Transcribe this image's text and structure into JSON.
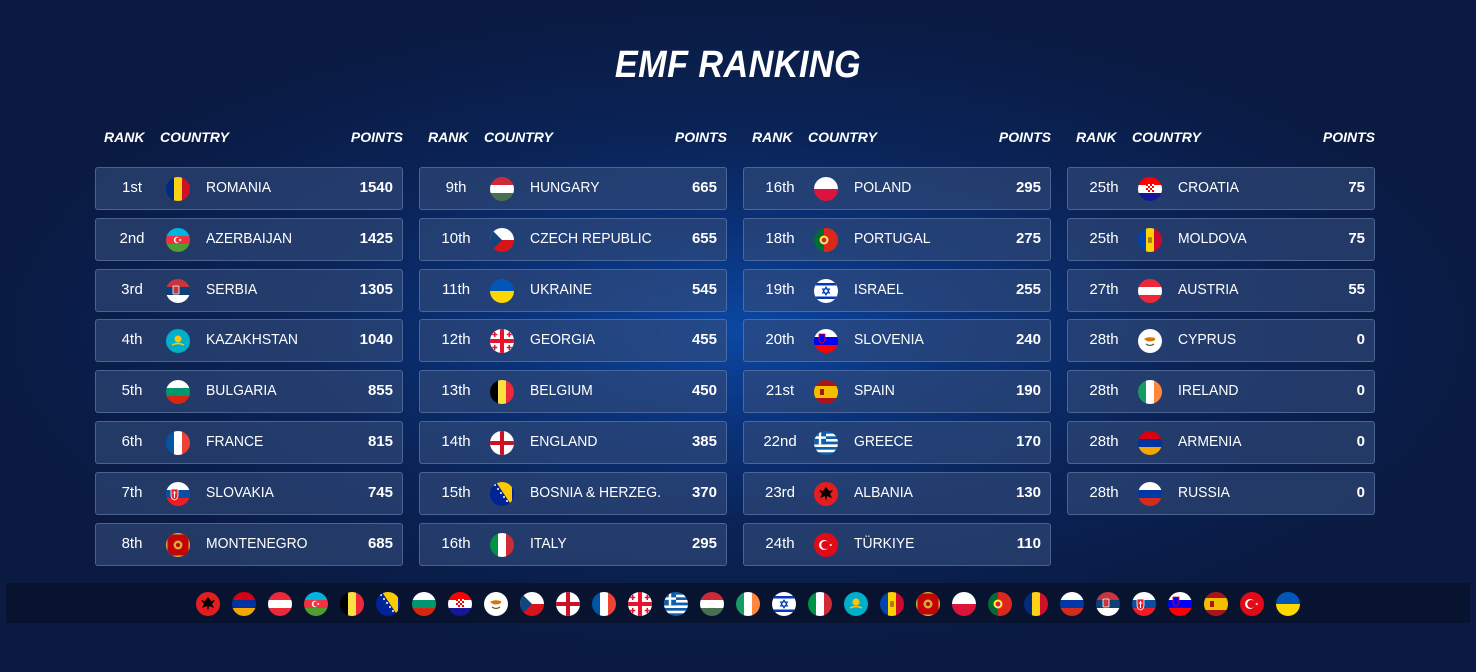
{
  "title": "EMF RANKING",
  "headers": {
    "rank": "RANK",
    "country": "COUNTRY",
    "points": "POINTS"
  },
  "columns": [
    [
      {
        "rank": "1st",
        "country": "ROMANIA",
        "points": "1540",
        "flag": "romania-flag"
      },
      {
        "rank": "2nd",
        "country": "AZERBAIJAN",
        "points": "1425",
        "flag": "azerbaijan-flag"
      },
      {
        "rank": "3rd",
        "country": "SERBIA",
        "points": "1305",
        "flag": "serbia-flag"
      },
      {
        "rank": "4th",
        "country": "KAZAKHSTAN",
        "points": "1040",
        "flag": "kazakhstan-flag"
      },
      {
        "rank": "5th",
        "country": "BULGARIA",
        "points": "855",
        "flag": "bulgaria-flag"
      },
      {
        "rank": "6th",
        "country": "FRANCE",
        "points": "815",
        "flag": "france-flag"
      },
      {
        "rank": "7th",
        "country": "SLOVAKIA",
        "points": "745",
        "flag": "slovakia-flag"
      },
      {
        "rank": "8th",
        "country": "MONTENEGRO",
        "points": "685",
        "flag": "montenegro-flag"
      }
    ],
    [
      {
        "rank": "9th",
        "country": "HUNGARY",
        "points": "665",
        "flag": "hungary-flag"
      },
      {
        "rank": "10th",
        "country": "CZECH REPUBLIC",
        "points": "655",
        "flag": "czech-flag"
      },
      {
        "rank": "11th",
        "country": "UKRAINE",
        "points": "545",
        "flag": "ukraine-flag"
      },
      {
        "rank": "12th",
        "country": "GEORGIA",
        "points": "455",
        "flag": "georgia-flag"
      },
      {
        "rank": "13th",
        "country": "BELGIUM",
        "points": "450",
        "flag": "belgium-flag"
      },
      {
        "rank": "14th",
        "country": "ENGLAND",
        "points": "385",
        "flag": "england-flag"
      },
      {
        "rank": "15th",
        "country": "BOSNIA & HERZEG.",
        "points": "370",
        "flag": "bosnia-flag"
      },
      {
        "rank": "16th",
        "country": "ITALY",
        "points": "295",
        "flag": "italy-flag"
      }
    ],
    [
      {
        "rank": "16th",
        "country": "POLAND",
        "points": "295",
        "flag": "poland-flag"
      },
      {
        "rank": "18th",
        "country": "PORTUGAL",
        "points": "275",
        "flag": "portugal-flag"
      },
      {
        "rank": "19th",
        "country": "ISRAEL",
        "points": "255",
        "flag": "israel-flag"
      },
      {
        "rank": "20th",
        "country": "SLOVENIA",
        "points": "240",
        "flag": "slovenia-flag"
      },
      {
        "rank": "21st",
        "country": "SPAIN",
        "points": "190",
        "flag": "spain-flag"
      },
      {
        "rank": "22nd",
        "country": "GREECE",
        "points": "170",
        "flag": "greece-flag"
      },
      {
        "rank": "23rd",
        "country": "ALBANIA",
        "points": "130",
        "flag": "albania-flag"
      },
      {
        "rank": "24th",
        "country": "TÜRKIYE",
        "points": "110",
        "flag": "turkiye-flag"
      }
    ],
    [
      {
        "rank": "25th",
        "country": "CROATIA",
        "points": "75",
        "flag": "croatia-flag"
      },
      {
        "rank": "25th",
        "country": "MOLDOVA",
        "points": "75",
        "flag": "moldova-flag"
      },
      {
        "rank": "27th",
        "country": "AUSTRIA",
        "points": "55",
        "flag": "austria-flag"
      },
      {
        "rank": "28th",
        "country": "CYPRUS",
        "points": "0",
        "flag": "cyprus-flag"
      },
      {
        "rank": "28th",
        "country": "IRELAND",
        "points": "0",
        "flag": "ireland-flag"
      },
      {
        "rank": "28th",
        "country": "ARMENIA",
        "points": "0",
        "flag": "armenia-flag"
      },
      {
        "rank": "28th",
        "country": "RUSSIA",
        "points": "0",
        "flag": "russia-flag"
      }
    ]
  ],
  "flag_strip": [
    "albania-flag",
    "armenia-flag",
    "austria-flag",
    "azerbaijan-flag",
    "belgium-flag",
    "bosnia-flag",
    "bulgaria-flag",
    "croatia-flag",
    "cyprus-flag",
    "czech-flag",
    "england-flag",
    "france-flag",
    "georgia-flag",
    "greece-flag",
    "hungary-flag",
    "ireland-flag",
    "israel-flag",
    "italy-flag",
    "kazakhstan-flag",
    "moldova-flag",
    "montenegro-flag",
    "poland-flag",
    "portugal-flag",
    "romania-flag",
    "russia-flag",
    "serbia-flag",
    "slovakia-flag",
    "slovenia-flag",
    "spain-flag",
    "turkiye-flag",
    "ukraine-flag"
  ],
  "colors": {
    "background": "#0a1a41",
    "background_glow": "#0b47a3",
    "row_fill": "#344c7a",
    "strip_fill": "#08142f",
    "text": "#ffffff"
  }
}
